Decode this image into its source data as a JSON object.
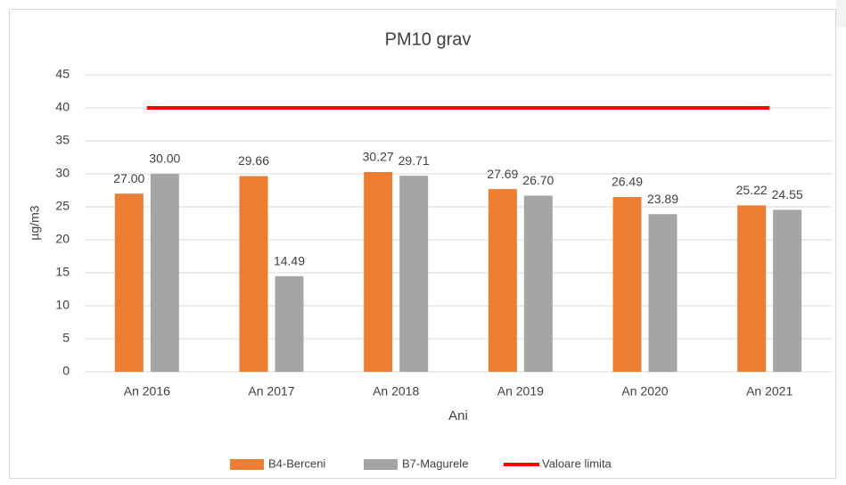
{
  "chart_data": {
    "type": "bar",
    "title": "PM10 grav",
    "xlabel": "Ani",
    "ylabel": "µg/m3",
    "categories": [
      "An 2016",
      "An 2017",
      "An 2018",
      "An 2019",
      "An 2020",
      "An 2021"
    ],
    "series": [
      {
        "name": "B4-Berceni",
        "color": "#ed7d31",
        "values": [
          27.0,
          29.66,
          30.27,
          27.69,
          26.49,
          25.22
        ],
        "value_labels": [
          "27.00",
          "29.66",
          "30.27",
          "27.69",
          "26.49",
          "25.22"
        ]
      },
      {
        "name": "B7-Magurele",
        "color": "#a5a5a5",
        "values": [
          30.0,
          14.49,
          29.71,
          26.7,
          23.89,
          24.55
        ],
        "value_labels": [
          "30.00",
          "14.49",
          "29.71",
          "26.70",
          "23.89",
          "24.55"
        ]
      },
      {
        "name": "Valoare limita",
        "color": "#ff0000",
        "type": "line",
        "values": [
          40,
          40,
          40,
          40,
          40,
          40
        ]
      }
    ],
    "ylim": [
      0,
      45
    ],
    "yticks": [
      0,
      5,
      10,
      15,
      20,
      25,
      30,
      35,
      40,
      45
    ],
    "grid": true,
    "legend": "bottom"
  }
}
